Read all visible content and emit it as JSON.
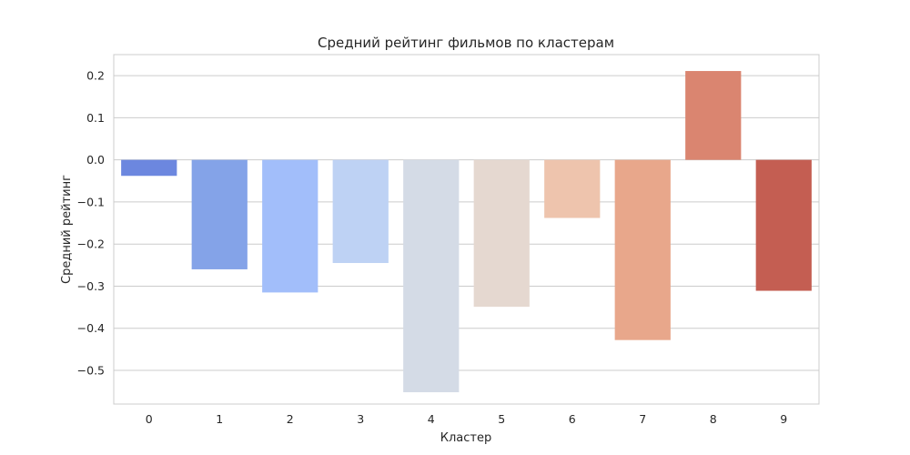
{
  "chart_data": {
    "type": "bar",
    "title": "Средний рейтинг фильмов по кластерам",
    "xlabel": "Кластер",
    "ylabel": "Средний рейтинг",
    "categories": [
      "0",
      "1",
      "2",
      "3",
      "4",
      "5",
      "6",
      "7",
      "8",
      "9"
    ],
    "values": [
      -0.038,
      -0.26,
      -0.315,
      -0.245,
      -0.552,
      -0.349,
      -0.138,
      -0.428,
      0.211,
      -0.311
    ],
    "colors": [
      "#6c87df",
      "#84a3e8",
      "#a2befa",
      "#bed2f4",
      "#d4dbe6",
      "#e5d8d0",
      "#eec4ad",
      "#e8a78b",
      "#da8570",
      "#c45e52"
    ],
    "yticks": [
      0.2,
      0.1,
      0.0,
      -0.1,
      -0.2,
      -0.3,
      -0.4,
      -0.5
    ],
    "ytick_labels": [
      "0.2",
      "0.1",
      "0.0",
      "−0.1",
      "−0.2",
      "−0.3",
      "−0.4",
      "−0.5"
    ],
    "ylim": [
      -0.58,
      0.25
    ],
    "grid": "y"
  }
}
